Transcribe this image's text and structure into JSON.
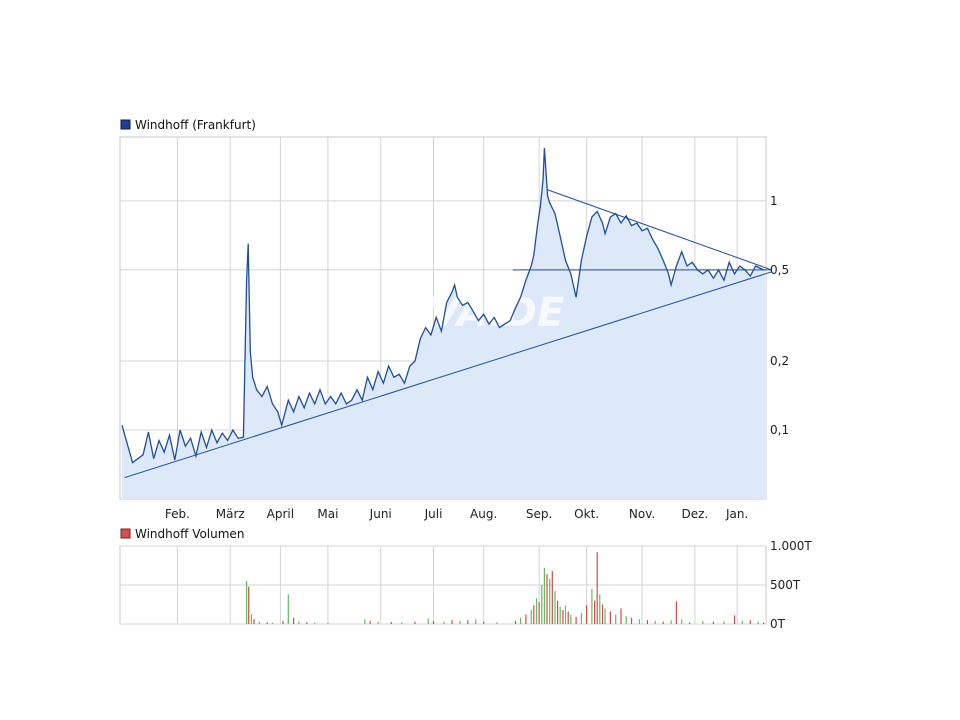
{
  "chart_data": [
    {
      "type": "line",
      "legend": "Windhoff (Frankfurt)",
      "legend_placement": "top-left",
      "watermark": "ARIVA.DE",
      "x_labels": [
        "Feb.",
        "März",
        "April",
        "Mai",
        "Juni",
        "Juli",
        "Aug.",
        "Sep.",
        "Okt.",
        "Nov.",
        "Dez.",
        "Jan."
      ],
      "y_scale": "log",
      "y_ticks": [
        {
          "value": 0.1,
          "label": "0,1"
        },
        {
          "value": 0.2,
          "label": "0,2"
        },
        {
          "value": 0.5,
          "label": "0,5"
        },
        {
          "value": 1,
          "label": "1"
        }
      ],
      "ylim": [
        0.05,
        1.9
      ],
      "grid": true,
      "colors": {
        "line": "#1f4e9c",
        "fill": "#dde8f8",
        "grid": "#d4d4d4",
        "legend_marker": "#1f3f8f"
      },
      "series": [
        {
          "points": [
            [
              0.0,
              0.105
            ],
            [
              0.4,
              0.072
            ],
            [
              0.8,
              0.078
            ],
            [
              1.0,
              0.098
            ],
            [
              1.2,
              0.075
            ],
            [
              1.4,
              0.09
            ],
            [
              1.6,
              0.08
            ],
            [
              1.8,
              0.095
            ],
            [
              2.0,
              0.074
            ],
            [
              2.2,
              0.1
            ],
            [
              2.4,
              0.085
            ],
            [
              2.6,
              0.092
            ],
            [
              2.8,
              0.077
            ],
            [
              3.0,
              0.098
            ],
            [
              3.2,
              0.084
            ],
            [
              3.4,
              0.1
            ],
            [
              3.6,
              0.088
            ],
            [
              3.8,
              0.097
            ],
            [
              4.0,
              0.09
            ],
            [
              4.2,
              0.1
            ],
            [
              4.4,
              0.092
            ],
            [
              4.6,
              0.093
            ],
            [
              4.72,
              0.45
            ],
            [
              4.78,
              0.65
            ],
            [
              4.86,
              0.22
            ],
            [
              4.95,
              0.17
            ],
            [
              5.1,
              0.15
            ],
            [
              5.3,
              0.14
            ],
            [
              5.5,
              0.155
            ],
            [
              5.7,
              0.13
            ],
            [
              5.9,
              0.12
            ],
            [
              6.05,
              0.105
            ],
            [
              6.3,
              0.135
            ],
            [
              6.5,
              0.12
            ],
            [
              6.7,
              0.14
            ],
            [
              6.9,
              0.125
            ],
            [
              7.1,
              0.145
            ],
            [
              7.3,
              0.13
            ],
            [
              7.5,
              0.15
            ],
            [
              7.7,
              0.13
            ],
            [
              7.9,
              0.14
            ],
            [
              8.1,
              0.13
            ],
            [
              8.3,
              0.145
            ],
            [
              8.5,
              0.13
            ],
            [
              8.7,
              0.135
            ],
            [
              8.9,
              0.15
            ],
            [
              9.1,
              0.135
            ],
            [
              9.3,
              0.17
            ],
            [
              9.5,
              0.15
            ],
            [
              9.7,
              0.18
            ],
            [
              9.9,
              0.16
            ],
            [
              10.1,
              0.19
            ],
            [
              10.3,
              0.17
            ],
            [
              10.5,
              0.175
            ],
            [
              10.7,
              0.16
            ],
            [
              10.9,
              0.19
            ],
            [
              11.1,
              0.2
            ],
            [
              11.3,
              0.25
            ],
            [
              11.5,
              0.28
            ],
            [
              11.7,
              0.26
            ],
            [
              11.9,
              0.31
            ],
            [
              12.1,
              0.27
            ],
            [
              12.3,
              0.36
            ],
            [
              12.5,
              0.4
            ],
            [
              12.6,
              0.43
            ],
            [
              12.7,
              0.38
            ],
            [
              12.9,
              0.35
            ],
            [
              13.1,
              0.36
            ],
            [
              13.3,
              0.33
            ],
            [
              13.5,
              0.3
            ],
            [
              13.7,
              0.32
            ],
            [
              13.9,
              0.29
            ],
            [
              14.1,
              0.31
            ],
            [
              14.3,
              0.28
            ],
            [
              14.5,
              0.29
            ],
            [
              14.7,
              0.3
            ],
            [
              14.9,
              0.34
            ],
            [
              15.1,
              0.38
            ],
            [
              15.3,
              0.45
            ],
            [
              15.5,
              0.52
            ],
            [
              15.6,
              0.58
            ],
            [
              15.75,
              0.8
            ],
            [
              15.85,
              0.95
            ],
            [
              15.95,
              1.25
            ],
            [
              16.0,
              1.7
            ],
            [
              16.05,
              1.4
            ],
            [
              16.12,
              1.05
            ],
            [
              16.2,
              0.98
            ],
            [
              16.4,
              0.88
            ],
            [
              16.6,
              0.7
            ],
            [
              16.8,
              0.55
            ],
            [
              17.0,
              0.48
            ],
            [
              17.2,
              0.38
            ],
            [
              17.4,
              0.55
            ],
            [
              17.6,
              0.7
            ],
            [
              17.8,
              0.85
            ],
            [
              18.0,
              0.9
            ],
            [
              18.2,
              0.8
            ],
            [
              18.3,
              0.72
            ],
            [
              18.5,
              0.85
            ],
            [
              18.7,
              0.88
            ],
            [
              18.9,
              0.8
            ],
            [
              19.1,
              0.86
            ],
            [
              19.3,
              0.78
            ],
            [
              19.5,
              0.8
            ],
            [
              19.7,
              0.74
            ],
            [
              19.9,
              0.76
            ],
            [
              20.1,
              0.68
            ],
            [
              20.3,
              0.62
            ],
            [
              20.5,
              0.55
            ],
            [
              20.7,
              0.48
            ],
            [
              20.8,
              0.43
            ],
            [
              21.0,
              0.52
            ],
            [
              21.2,
              0.6
            ],
            [
              21.4,
              0.52
            ],
            [
              21.6,
              0.54
            ],
            [
              21.8,
              0.5
            ],
            [
              22.0,
              0.48
            ],
            [
              22.2,
              0.5
            ],
            [
              22.4,
              0.46
            ],
            [
              22.6,
              0.5
            ],
            [
              22.8,
              0.45
            ],
            [
              23.0,
              0.54
            ],
            [
              23.2,
              0.48
            ],
            [
              23.4,
              0.52
            ],
            [
              23.6,
              0.5
            ],
            [
              23.8,
              0.47
            ],
            [
              24.0,
              0.52
            ],
            [
              24.3,
              0.5
            ]
          ]
        }
      ],
      "trendlines": [
        {
          "from": [
            0.1,
            0.062
          ],
          "to": [
            24.6,
            0.49
          ]
        },
        {
          "from": [
            16.1,
            1.12
          ],
          "to": [
            24.6,
            0.5
          ]
        },
        {
          "from": [
            14.8,
            0.5
          ],
          "to": [
            24.6,
            0.5
          ]
        }
      ]
    },
    {
      "type": "bar",
      "legend": "Windhoff Volumen",
      "legend_placement": "top-left",
      "y_ticks": [
        {
          "value": 0,
          "label": "0T"
        },
        {
          "value": 500,
          "label": "500T"
        },
        {
          "value": 1000,
          "label": "1.000T"
        }
      ],
      "ylim": [
        0,
        1000
      ],
      "grid": true,
      "colors": {
        "up": "#5cc05c",
        "down": "#d94848",
        "legend_marker": "#d05050",
        "grid": "#d4d4d4"
      },
      "series": [
        {
          "name": "Windhoff Volumen",
          "bars": [
            [
              4.72,
              550,
              "g"
            ],
            [
              4.8,
              480,
              "r"
            ],
            [
              4.9,
              120,
              "g"
            ],
            [
              5.0,
              60,
              "r"
            ],
            [
              5.2,
              30,
              "g"
            ],
            [
              5.5,
              20,
              "r"
            ],
            [
              5.7,
              15,
              "g"
            ],
            [
              6.1,
              40,
              "r"
            ],
            [
              6.3,
              380,
              "g"
            ],
            [
              6.5,
              80,
              "r"
            ],
            [
              6.7,
              30,
              "g"
            ],
            [
              7.0,
              20,
              "r"
            ],
            [
              7.3,
              15,
              "g"
            ],
            [
              7.8,
              10,
              "r"
            ],
            [
              9.2,
              60,
              "g"
            ],
            [
              9.4,
              40,
              "r"
            ],
            [
              9.7,
              30,
              "g"
            ],
            [
              10.2,
              25,
              "r"
            ],
            [
              10.6,
              20,
              "g"
            ],
            [
              11.1,
              30,
              "r"
            ],
            [
              11.6,
              70,
              "g"
            ],
            [
              11.8,
              40,
              "r"
            ],
            [
              12.2,
              30,
              "g"
            ],
            [
              12.5,
              50,
              "r"
            ],
            [
              12.8,
              40,
              "g"
            ],
            [
              13.1,
              50,
              "r"
            ],
            [
              13.4,
              60,
              "g"
            ],
            [
              13.7,
              30,
              "r"
            ],
            [
              14.2,
              20,
              "g"
            ],
            [
              14.9,
              40,
              "r"
            ],
            [
              15.1,
              80,
              "g"
            ],
            [
              15.3,
              120,
              "r"
            ],
            [
              15.5,
              180,
              "g"
            ],
            [
              15.6,
              240,
              "r"
            ],
            [
              15.7,
              330,
              "g"
            ],
            [
              15.8,
              280,
              "r"
            ],
            [
              15.9,
              500,
              "g"
            ],
            [
              16.0,
              720,
              "g"
            ],
            [
              16.1,
              640,
              "r"
            ],
            [
              16.2,
              580,
              "g"
            ],
            [
              16.3,
              680,
              "r"
            ],
            [
              16.4,
              420,
              "g"
            ],
            [
              16.5,
              300,
              "r"
            ],
            [
              16.6,
              220,
              "g"
            ],
            [
              16.7,
              180,
              "r"
            ],
            [
              16.8,
              240,
              "g"
            ],
            [
              16.9,
              160,
              "r"
            ],
            [
              17.0,
              120,
              "g"
            ],
            [
              17.2,
              90,
              "r"
            ],
            [
              17.4,
              140,
              "g"
            ],
            [
              17.6,
              240,
              "r"
            ],
            [
              17.8,
              450,
              "g"
            ],
            [
              17.9,
              300,
              "r"
            ],
            [
              18.0,
              920,
              "r"
            ],
            [
              18.1,
              380,
              "g"
            ],
            [
              18.2,
              250,
              "r"
            ],
            [
              18.3,
              200,
              "g"
            ],
            [
              18.5,
              160,
              "r"
            ],
            [
              18.7,
              120,
              "g"
            ],
            [
              18.9,
              200,
              "r"
            ],
            [
              19.1,
              100,
              "g"
            ],
            [
              19.3,
              80,
              "r"
            ],
            [
              19.6,
              60,
              "g"
            ],
            [
              19.9,
              50,
              "r"
            ],
            [
              20.2,
              40,
              "g"
            ],
            [
              20.5,
              30,
              "r"
            ],
            [
              20.8,
              50,
              "g"
            ],
            [
              21.0,
              290,
              "r"
            ],
            [
              21.2,
              60,
              "g"
            ],
            [
              21.5,
              20,
              "r"
            ],
            [
              22.0,
              40,
              "g"
            ],
            [
              22.4,
              30,
              "r"
            ],
            [
              22.8,
              35,
              "g"
            ],
            [
              23.2,
              110,
              "r"
            ],
            [
              23.5,
              40,
              "g"
            ],
            [
              23.8,
              50,
              "r"
            ],
            [
              24.1,
              30,
              "g"
            ],
            [
              24.3,
              20,
              "r"
            ]
          ]
        }
      ]
    }
  ]
}
